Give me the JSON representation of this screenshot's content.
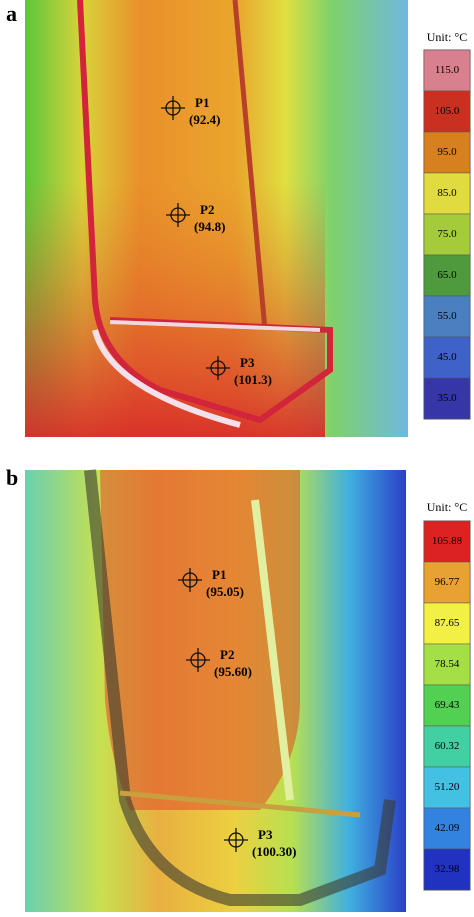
{
  "panels": [
    {
      "label": "a",
      "unit": "Unit: °C",
      "points": [
        {
          "name": "P1",
          "value": "(92.4)"
        },
        {
          "name": "P2",
          "value": "(94.8)"
        },
        {
          "name": "P3",
          "value": "(101.3)"
        }
      ],
      "scale": [
        {
          "label": "115.0",
          "color": "#d9808e"
        },
        {
          "label": "105.0",
          "color": "#c9301f"
        },
        {
          "label": "95.0",
          "color": "#d6801f"
        },
        {
          "label": "85.0",
          "color": "#e0db3f"
        },
        {
          "label": "75.0",
          "color": "#a4cc3a"
        },
        {
          "label": "65.0",
          "color": "#4e9a3c"
        },
        {
          "label": "55.0",
          "color": "#4a7fc0"
        },
        {
          "label": "45.0",
          "color": "#3f62c9"
        },
        {
          "label": "35.0",
          "color": "#3636a8"
        }
      ]
    },
    {
      "label": "b",
      "unit": "Unit: °C",
      "points": [
        {
          "name": "P1",
          "value": "(95.05)"
        },
        {
          "name": "P2",
          "value": "(95.60)"
        },
        {
          "name": "P3",
          "value": "(100.30)"
        }
      ],
      "scale": [
        {
          "label": "105.88",
          "color": "#dd2222"
        },
        {
          "label": "96.77",
          "color": "#e8a232"
        },
        {
          "label": "87.65",
          "color": "#f2f045"
        },
        {
          "label": "78.54",
          "color": "#a4e045"
        },
        {
          "label": "69.43",
          "color": "#52d052"
        },
        {
          "label": "60.32",
          "color": "#42d0a2"
        },
        {
          "label": "51.20",
          "color": "#44c0e2"
        },
        {
          "label": "42.09",
          "color": "#3282e0"
        },
        {
          "label": "32.98",
          "color": "#2232c0"
        }
      ]
    }
  ]
}
